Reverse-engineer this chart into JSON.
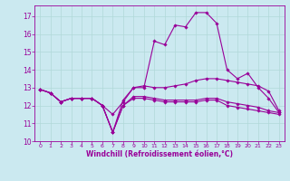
{
  "xlabel": "Windchill (Refroidissement éolien,°C)",
  "background_color": "#cbe9f0",
  "line_color": "#990099",
  "grid_color": "#b0d8d8",
  "xlim": [
    -0.5,
    23.5
  ],
  "ylim": [
    10,
    17.6
  ],
  "yticks": [
    10,
    11,
    12,
    13,
    14,
    15,
    16,
    17
  ],
  "xticks": [
    0,
    1,
    2,
    3,
    4,
    5,
    6,
    7,
    8,
    9,
    10,
    11,
    12,
    13,
    14,
    15,
    16,
    17,
    18,
    19,
    20,
    21,
    22,
    23
  ],
  "line1_y": [
    12.9,
    12.7,
    12.2,
    12.4,
    12.4,
    12.4,
    12.0,
    11.5,
    12.2,
    13.0,
    13.0,
    15.6,
    15.4,
    16.5,
    16.4,
    17.2,
    17.2,
    16.6,
    14.0,
    13.5,
    13.8,
    13.0,
    12.4,
    11.6
  ],
  "line2_y": [
    12.9,
    12.7,
    12.2,
    12.4,
    12.4,
    12.4,
    12.0,
    10.5,
    12.3,
    13.0,
    13.1,
    13.0,
    13.0,
    13.1,
    13.2,
    13.4,
    13.5,
    13.5,
    13.4,
    13.3,
    13.2,
    13.1,
    12.8,
    11.7
  ],
  "line3_y": [
    12.9,
    12.7,
    12.2,
    12.4,
    12.4,
    12.4,
    12.0,
    10.5,
    12.0,
    12.5,
    12.5,
    12.4,
    12.3,
    12.3,
    12.3,
    12.3,
    12.4,
    12.4,
    12.2,
    12.1,
    12.0,
    11.9,
    11.7,
    11.6
  ],
  "line4_y": [
    12.9,
    12.7,
    12.2,
    12.4,
    12.4,
    12.4,
    12.0,
    10.5,
    12.0,
    12.4,
    12.4,
    12.3,
    12.2,
    12.2,
    12.2,
    12.2,
    12.3,
    12.3,
    12.0,
    11.9,
    11.8,
    11.7,
    11.6,
    11.5
  ]
}
